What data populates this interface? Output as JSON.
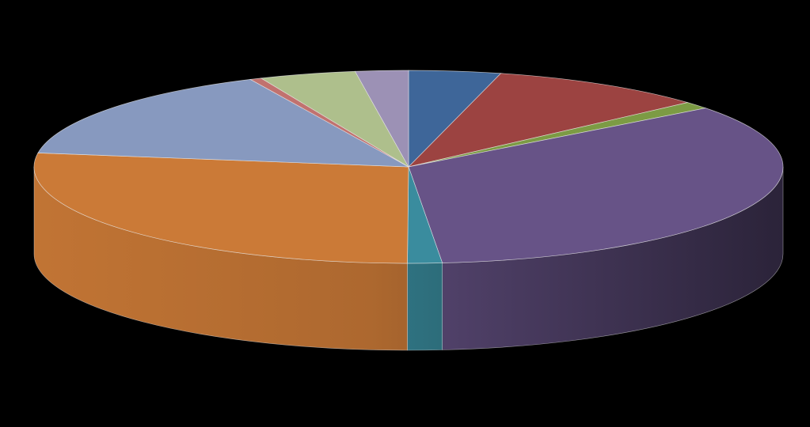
{
  "chart_data": {
    "type": "pie",
    "style": "3d",
    "title": "",
    "legend": "none",
    "data_labels": "none",
    "slices": [
      {
        "value": 4.0,
        "color": "#3e6699"
      },
      {
        "value": 9.5,
        "color": "#9c4341"
      },
      {
        "value": 1.2,
        "color": "#7c9b44"
      },
      {
        "value": 34.3,
        "color": "#675387"
      },
      {
        "value": 1.5,
        "color": "#3a8c9e"
      },
      {
        "value": 27.5,
        "color": "#cb7a37"
      },
      {
        "value": 15.9,
        "color": "#8799bf"
      },
      {
        "value": 0.5,
        "color": "#c1726f"
      },
      {
        "value": 4.2,
        "color": "#aebf8c"
      },
      {
        "value": 2.3,
        "color": "#9c91b5"
      }
    ]
  }
}
